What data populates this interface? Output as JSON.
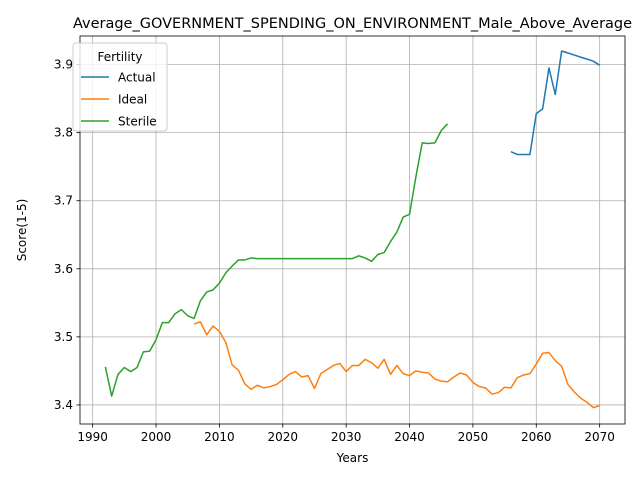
{
  "chart_data": {
    "type": "line",
    "title": "Average_GOVERNMENT_SPENDING_ON_ENVIRONMENT_Male_Above_Average",
    "xlabel": "Years",
    "ylabel": "Score(1-5)",
    "xlim": [
      1988,
      2074
    ],
    "ylim": [
      3.372,
      3.942
    ],
    "xticks": [
      1990,
      2000,
      2010,
      2020,
      2030,
      2040,
      2050,
      2060,
      2070
    ],
    "yticks": [
      3.4,
      3.5,
      3.6,
      3.7,
      3.8,
      3.9
    ],
    "grid": true,
    "legend": {
      "title": "Fertility",
      "position": "top-left"
    },
    "series": [
      {
        "name": "Actual",
        "color": "#1f77b4",
        "x": [
          2056,
          2057,
          2058,
          2059,
          2060,
          2061,
          2062,
          2063,
          2064,
          2065,
          2066,
          2067,
          2068,
          2069,
          2070
        ],
        "y": [
          3.772,
          3.768,
          3.768,
          3.768,
          3.828,
          3.835,
          3.895,
          3.856,
          3.92,
          3.917,
          3.914,
          3.911,
          3.908,
          3.905,
          3.899
        ]
      },
      {
        "name": "Ideal",
        "color": "#ff7f0e",
        "x": [
          2006,
          2007,
          2008,
          2009,
          2010,
          2011,
          2012,
          2013,
          2014,
          2015,
          2016,
          2017,
          2018,
          2019,
          2020,
          2021,
          2022,
          2023,
          2024,
          2025,
          2026,
          2027,
          2028,
          2029,
          2030,
          2031,
          2032,
          2033,
          2034,
          2035,
          2036,
          2037,
          2038,
          2039,
          2040,
          2041,
          2042,
          2043,
          2044,
          2045,
          2046,
          2047,
          2048,
          2049,
          2050,
          2051,
          2052,
          2053,
          2054,
          2055,
          2056,
          2057,
          2058,
          2059,
          2060,
          2061,
          2062,
          2063,
          2064,
          2065,
          2066,
          2067,
          2068,
          2069,
          2070
        ],
        "y": [
          3.519,
          3.522,
          3.503,
          3.516,
          3.508,
          3.492,
          3.459,
          3.451,
          3.431,
          3.423,
          3.429,
          3.425,
          3.427,
          3.43,
          3.437,
          3.445,
          3.449,
          3.441,
          3.443,
          3.424,
          3.446,
          3.452,
          3.458,
          3.461,
          3.449,
          3.458,
          3.458,
          3.467,
          3.462,
          3.454,
          3.467,
          3.445,
          3.458,
          3.446,
          3.443,
          3.45,
          3.448,
          3.447,
          3.438,
          3.435,
          3.434,
          3.441,
          3.447,
          3.444,
          3.433,
          3.427,
          3.425,
          3.416,
          3.418,
          3.426,
          3.425,
          3.44,
          3.444,
          3.446,
          3.46,
          3.476,
          3.477,
          3.465,
          3.457,
          3.43,
          3.419,
          3.41,
          3.404,
          3.396,
          3.399
        ]
      },
      {
        "name": "Sterile",
        "color": "#2ca02c",
        "x": [
          1992,
          1993,
          1994,
          1995,
          1996,
          1997,
          1998,
          1999,
          2000,
          2001,
          2002,
          2003,
          2004,
          2005,
          2006,
          2007,
          2008,
          2009,
          2010,
          2011,
          2012,
          2013,
          2014,
          2015,
          2016,
          2017,
          2018,
          2019,
          2020,
          2021,
          2022,
          2023,
          2024,
          2025,
          2026,
          2027,
          2028,
          2029,
          2030,
          2031,
          2032,
          2033,
          2034,
          2035,
          2036,
          2037,
          2038,
          2039,
          2040,
          2041,
          2042,
          2043,
          2044,
          2045,
          2046
        ],
        "y": [
          3.456,
          3.413,
          3.445,
          3.455,
          3.449,
          3.455,
          3.478,
          3.479,
          3.496,
          3.521,
          3.521,
          3.534,
          3.54,
          3.531,
          3.527,
          3.553,
          3.566,
          3.569,
          3.579,
          3.594,
          3.604,
          3.613,
          3.613,
          3.616,
          3.615,
          3.615,
          3.615,
          3.615,
          3.615,
          3.615,
          3.615,
          3.615,
          3.615,
          3.615,
          3.615,
          3.615,
          3.615,
          3.615,
          3.615,
          3.615,
          3.619,
          3.616,
          3.611,
          3.621,
          3.624,
          3.64,
          3.654,
          3.676,
          3.68,
          3.735,
          3.785,
          3.784,
          3.785,
          3.803,
          3.813
        ]
      }
    ]
  }
}
